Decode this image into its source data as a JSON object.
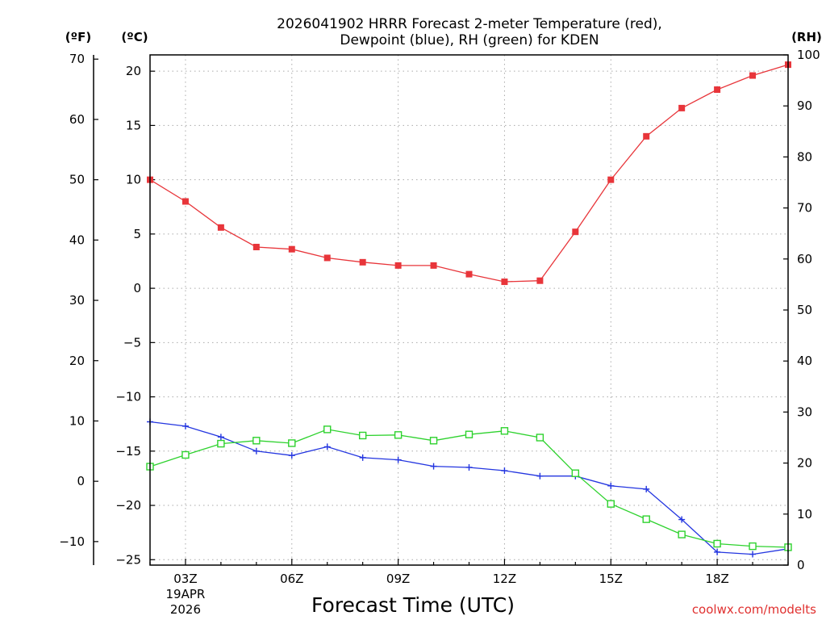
{
  "chart_data": {
    "type": "line",
    "title": [
      "2026041902 HRRR Forecast 2-meter Temperature (red),",
      "Dewpoint (blue), RH (green) for KDEN"
    ],
    "xlabel": "Forecast Time (UTC)",
    "credit": "coolwx.com/modelts",
    "units": {
      "fahrenheit": "(ºF)",
      "celsius": "(ºC)",
      "rh": "(RH)"
    },
    "x": [
      2,
      3,
      4,
      5,
      6,
      7,
      8,
      9,
      10,
      11,
      12,
      13,
      14,
      15,
      16,
      17,
      18,
      19,
      20
    ],
    "x_ticks": [
      {
        "hour": 3,
        "label": "03Z",
        "date": "19APR",
        "year": "2026"
      },
      {
        "hour": 6,
        "label": "06Z"
      },
      {
        "hour": 9,
        "label": "09Z"
      },
      {
        "hour": 12,
        "label": "12Z"
      },
      {
        "hour": 15,
        "label": "15Z"
      },
      {
        "hour": 18,
        "label": "18Z"
      }
    ],
    "xlim": [
      2,
      20
    ],
    "ylim_celsius": [
      -25.5,
      21.5
    ],
    "yticks_celsius": [
      20,
      15,
      10,
      5,
      0,
      -5,
      -10,
      -15,
      -20,
      -25
    ],
    "yticks_fahrenheit": [
      70,
      60,
      50,
      40,
      30,
      20,
      10,
      0,
      -10
    ],
    "ylim_rh": [
      0,
      100
    ],
    "yticks_rh": [
      100,
      90,
      80,
      70,
      60,
      50,
      40,
      30,
      20,
      10,
      0
    ],
    "series": [
      {
        "name": "2-meter Temperature",
        "axis": "celsius",
        "color": "#e8353a",
        "marker": "square-filled",
        "values": [
          10.0,
          8.0,
          5.6,
          3.8,
          3.6,
          2.8,
          2.4,
          2.1,
          2.1,
          1.3,
          0.6,
          0.7,
          5.2,
          10.0,
          14.0,
          16.6,
          18.3,
          19.6,
          20.6
        ]
      },
      {
        "name": "Dewpoint",
        "axis": "celsius",
        "color": "#2436e0",
        "marker": "plus",
        "values": [
          -12.3,
          -12.7,
          -13.7,
          -15.0,
          -15.4,
          -14.6,
          -15.6,
          -15.8,
          -16.4,
          -16.5,
          -16.8,
          -17.3,
          -17.3,
          -18.2,
          -18.5,
          -21.3,
          -24.3,
          -24.5,
          -24.0
        ]
      },
      {
        "name": "RH",
        "axis": "rh",
        "color": "#2ed22e",
        "marker": "square-open",
        "values": [
          19.3,
          21.6,
          23.8,
          24.4,
          23.9,
          26.6,
          25.4,
          25.5,
          24.4,
          25.6,
          26.3,
          25.0,
          18.0,
          12.0,
          9.0,
          6.0,
          4.2,
          3.7,
          3.5
        ]
      }
    ]
  }
}
